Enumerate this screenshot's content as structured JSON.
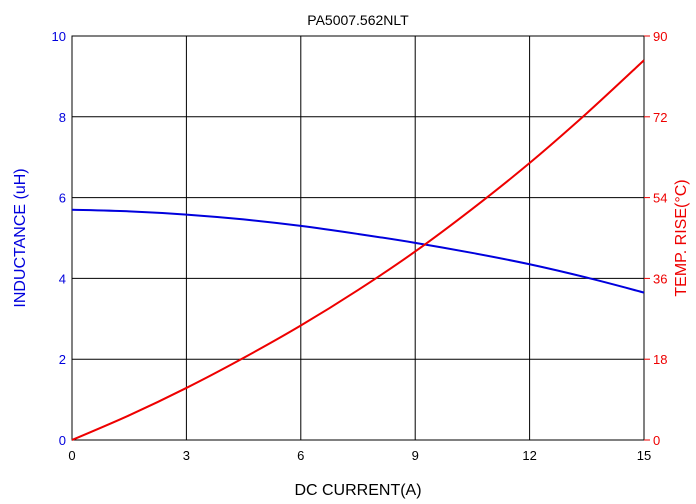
{
  "chart_data": {
    "type": "line",
    "title": "PA5007.562NLT",
    "xlabel": "DC CURRENT(A)",
    "ylabel_left": "INDUCTANCE (uH)",
    "ylabel_right": "TEMP. RISE(°C)",
    "xlim": [
      0,
      15
    ],
    "ylim_left": [
      0,
      10
    ],
    "ylim_right": [
      0,
      90
    ],
    "x_ticks": [
      "0",
      "3",
      "6",
      "9",
      "12",
      "15"
    ],
    "y_left_ticks": [
      "0",
      "2",
      "4",
      "6",
      "8",
      "10"
    ],
    "y_right_ticks": [
      "0",
      "18",
      "36",
      "54",
      "72",
      "90"
    ],
    "grid": true,
    "series": [
      {
        "axis": "left",
        "color": "#0000dd",
        "x": [
          0,
          1.5,
          3,
          4.5,
          6,
          7.5,
          9,
          10.5,
          12,
          13.5,
          15
        ],
        "y": [
          5.7,
          5.66,
          5.58,
          5.46,
          5.3,
          5.1,
          4.88,
          4.63,
          4.35,
          4.02,
          3.65
        ]
      },
      {
        "axis": "right",
        "color": "#ee0000",
        "x": [
          0,
          1.5,
          3,
          4.5,
          6,
          7.5,
          9,
          10.5,
          12,
          13.5,
          15
        ],
        "y": [
          0,
          5.5,
          11.6,
          18.3,
          25.5,
          33.4,
          42.0,
          51.5,
          61.7,
          72.8,
          84.6
        ]
      }
    ]
  }
}
